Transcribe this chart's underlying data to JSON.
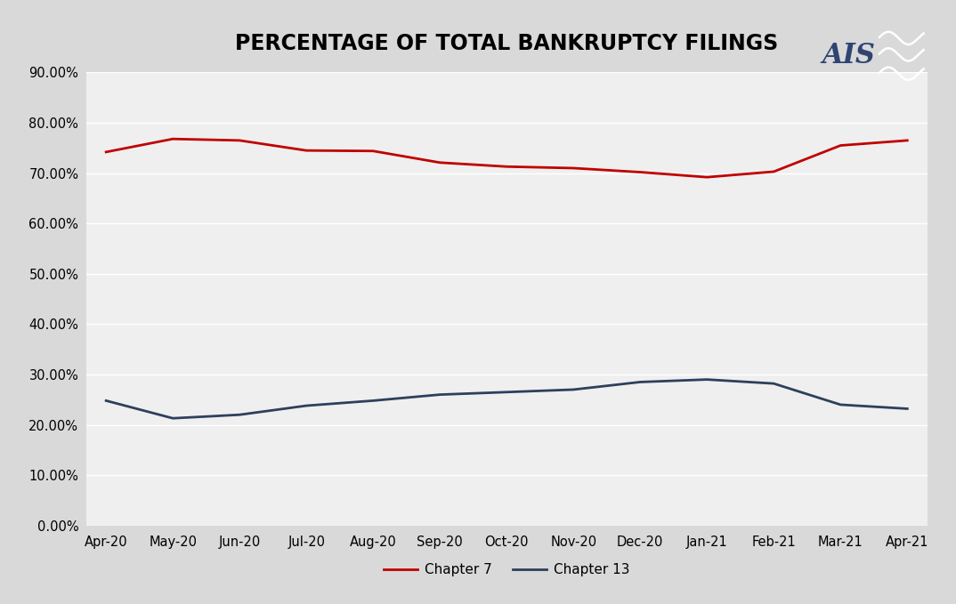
{
  "title": "PERCENTAGE OF TOTAL BANKRUPTCY FILINGS",
  "categories": [
    "Apr-20",
    "May-20",
    "Jun-20",
    "Jul-20",
    "Aug-20",
    "Sep-20",
    "Oct-20",
    "Nov-20",
    "Dec-20",
    "Jan-21",
    "Feb-21",
    "Mar-21",
    "Apr-21"
  ],
  "chapter7": [
    0.742,
    0.768,
    0.765,
    0.745,
    0.744,
    0.721,
    0.713,
    0.71,
    0.702,
    0.692,
    0.703,
    0.755,
    0.765
  ],
  "chapter13": [
    0.248,
    0.213,
    0.22,
    0.238,
    0.248,
    0.26,
    0.265,
    0.27,
    0.285,
    0.29,
    0.282,
    0.24,
    0.232
  ],
  "chapter7_color": "#c00000",
  "chapter13_color": "#2e3f5c",
  "outer_bg_color": "#d9d9d9",
  "inner_bg_color": "#efefef",
  "grid_color": "#ffffff",
  "title_fontsize": 17,
  "axis_fontsize": 10.5,
  "legend_fontsize": 11,
  "ylim": [
    0.0,
    0.9
  ],
  "yticks": [
    0.0,
    0.1,
    0.2,
    0.3,
    0.4,
    0.5,
    0.6,
    0.7,
    0.8,
    0.9
  ],
  "line_width": 2.0,
  "ais_text_color": "#2e4472",
  "ais_box_color": "#b22020"
}
